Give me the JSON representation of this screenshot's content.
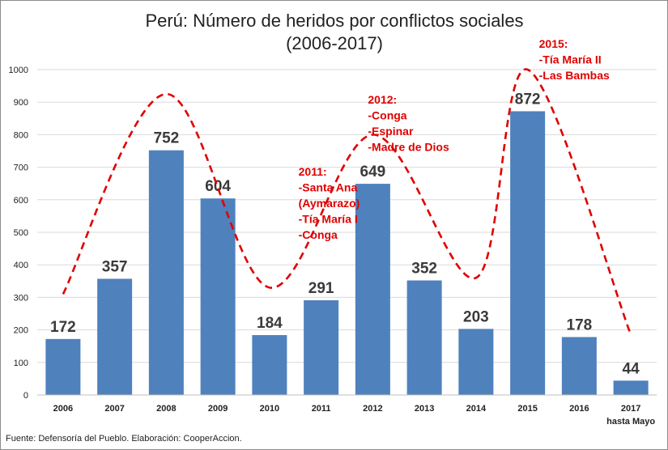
{
  "chart_data": {
    "type": "bar",
    "title": "Perú: Número de heridos por conflictos sociales",
    "subtitle": "(2006-2017)",
    "categories": [
      "2006",
      "2007",
      "2008",
      "2009",
      "2010",
      "2011",
      "2012",
      "2013",
      "2014",
      "2015",
      "2016",
      "2017"
    ],
    "category_sublabels": {
      "2017": "hasta Mayo"
    },
    "series": [
      {
        "values": [
          172,
          357,
          752,
          604,
          184,
          291,
          649,
          352,
          203,
          872,
          178,
          44
        ],
        "color": "#4f81bd"
      }
    ],
    "ylim": [
      0,
      1000
    ],
    "yticks": [
      0,
      100,
      200,
      300,
      400,
      500,
      600,
      700,
      800,
      900,
      1000
    ],
    "grid": true,
    "trend_line": {
      "style": "dashed",
      "color": "#e00000",
      "points": [
        [
          2006,
          310
        ],
        [
          2008,
          925
        ],
        [
          2010,
          330
        ],
        [
          2012,
          800
        ],
        [
          2014,
          360
        ],
        [
          2015,
          1000
        ],
        [
          2017,
          185
        ]
      ]
    },
    "annotations": [
      {
        "anchor_category": "2011",
        "lines": [
          "2011:",
          "-Santa Ana",
          "(Aymarazo)",
          "-Tía María I",
          "-Conga"
        ]
      },
      {
        "anchor_category": "2012",
        "lines": [
          "2012:",
          "-Conga",
          "-Espinar",
          "-Madre de Dios"
        ]
      },
      {
        "anchor_category": "2015",
        "lines": [
          "2015:",
          "-Tía María II",
          "-Las Bambas"
        ]
      }
    ],
    "source": "Fuente: Defensoría del Pueblo. Elaboración: CooperAccion."
  }
}
